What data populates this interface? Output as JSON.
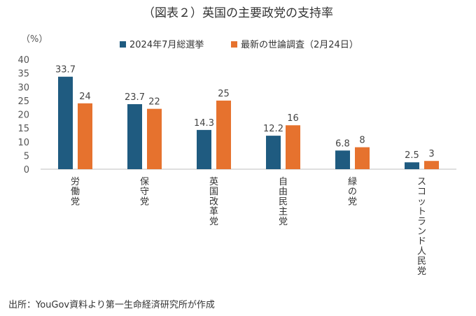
{
  "title": "（図表２）英国の主要政党の支持率",
  "source": "出所：YouGov資料より第一生命経済研究所が作成",
  "colors": {
    "series1": "#1f5b80",
    "series2": "#e6722e",
    "axis": "#bfbfbf"
  },
  "chart_data": {
    "type": "bar",
    "title": "（図表２）英国の主要政党の支持率",
    "ylabel": "（%）",
    "xlabel": "",
    "ylim": [
      0,
      40
    ],
    "yticks": [
      0,
      5,
      10,
      15,
      20,
      25,
      30,
      35,
      40
    ],
    "grid": false,
    "legend_position": "top",
    "categories": [
      "労働党",
      "保守党",
      "英国改革党",
      "自由民主党",
      "緑の党",
      "スコットランド人民党"
    ],
    "series": [
      {
        "name": "2024年7月総選挙",
        "values": [
          33.7,
          23.7,
          14.3,
          12.2,
          6.8,
          2.5
        ],
        "labels": [
          "33.7",
          "23.7",
          "14.3",
          "12.2",
          "6.8",
          "2.5"
        ]
      },
      {
        "name": "最新の世論調査（2月24日）",
        "values": [
          24,
          22,
          25,
          16,
          8,
          3
        ],
        "labels": [
          "24",
          "22",
          "25",
          "16",
          "8",
          "3"
        ]
      }
    ]
  }
}
